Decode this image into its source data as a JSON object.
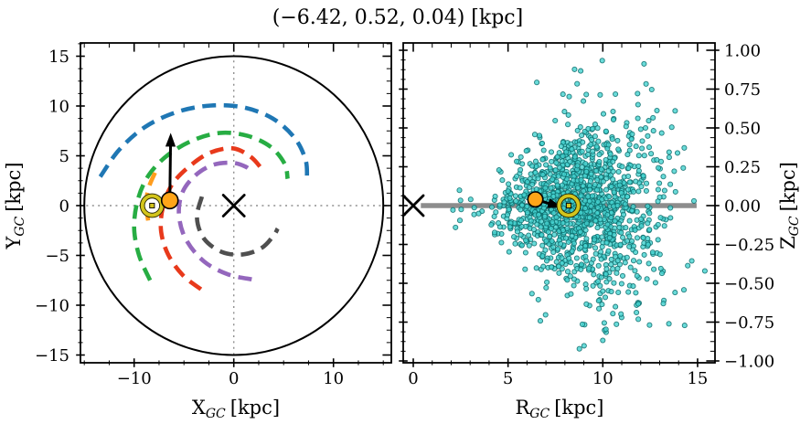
{
  "figure": {
    "title": "(−6.42, 0.52, 0.04) [kpc]",
    "background": "#ffffff"
  },
  "style": {
    "axis_color": "#000000",
    "crosshair_gray": "#8f8f8f",
    "boundary_circle": "#000000",
    "star_orange": "#ffa519",
    "sun_yellow": "#d3c51d",
    "scatter_fill": "#45d2cf",
    "scatter_edge": "#0c6b6b",
    "midplane_bar_gray": "#8d8d8d",
    "arrow_black": "#000000"
  },
  "chart_data": [
    {
      "type": "scatter",
      "id": "xy_plane",
      "xlabel": {
        "prefix": "X",
        "sub": "GC",
        "suffix": "[kpc]"
      },
      "ylabel": {
        "prefix": "Y",
        "sub": "GC",
        "suffix": "[kpc]"
      },
      "xlim": [
        -15.4,
        15.8
      ],
      "ylim": [
        -15.8,
        16.3
      ],
      "xticks": {
        "values": [
          -10,
          0,
          10
        ],
        "labels": [
          "−10",
          "0",
          "10"
        ]
      },
      "yticks": {
        "values": [
          -15,
          -10,
          -5,
          0,
          5,
          10,
          15
        ],
        "labels": [
          "−15",
          "−10",
          "−5",
          "0",
          "5",
          "10",
          "15"
        ]
      },
      "minor_step_x": 2.5,
      "minor_step_y": 1.25,
      "crosshair_dotted": true,
      "boundary_circle_radius": 15,
      "galactic_center": {
        "x": 0,
        "y": 0,
        "marker": "x"
      },
      "sun": {
        "x": -8.2,
        "y": 0
      },
      "object": {
        "x": -6.42,
        "y": 0.52
      },
      "arrow": {
        "from": [
          -6.42,
          0.52
        ],
        "to": [
          -6.33,
          7.3
        ]
      },
      "spiral_arms": [
        {
          "name": "arm-blue",
          "color": "#1f77b4",
          "points": [
            [
              -13.4,
              2.9
            ],
            [
              -11.5,
              5.6
            ],
            [
              -8.9,
              7.9
            ],
            [
              -5.7,
              9.4
            ],
            [
              -2.3,
              10.05
            ],
            [
              1.0,
              9.85
            ],
            [
              3.9,
              8.75
            ],
            [
              6.1,
              6.8
            ],
            [
              7.2,
              4.6
            ],
            [
              7.35,
              2.8
            ]
          ]
        },
        {
          "name": "arm-green",
          "color": "#27ad43",
          "points": [
            [
              -8.4,
              -7.5
            ],
            [
              -9.5,
              -5.0
            ],
            [
              -10.0,
              -2.2
            ],
            [
              -9.6,
              0.7
            ],
            [
              -8.5,
              3.1
            ],
            [
              -6.6,
              5.1
            ],
            [
              -4.0,
              6.6
            ],
            [
              -1.3,
              7.3
            ],
            [
              1.4,
              7.0
            ],
            [
              3.7,
              5.9
            ],
            [
              5.1,
              4.2
            ],
            [
              5.4,
              2.7
            ]
          ]
        },
        {
          "name": "arm-orange-local",
          "color": "#ff9d1e",
          "points": [
            [
              -7.9,
              3.3
            ],
            [
              -8.5,
              1.9
            ],
            [
              -8.8,
              0.3
            ],
            [
              -8.6,
              -1.5
            ]
          ]
        },
        {
          "name": "arm-red",
          "color": "#e8391b",
          "points": [
            [
              -3.3,
              -8.4
            ],
            [
              -5.1,
              -7.0
            ],
            [
              -6.6,
              -4.9
            ],
            [
              -7.3,
              -2.5
            ],
            [
              -7.1,
              -0.1
            ],
            [
              -6.2,
              2.1
            ],
            [
              -4.5,
              3.9
            ],
            [
              -2.4,
              5.3
            ],
            [
              -0.1,
              5.75
            ],
            [
              1.7,
              4.9
            ],
            [
              2.8,
              3.7
            ]
          ]
        },
        {
          "name": "arm-purple",
          "color": "#9467bd",
          "points": [
            [
              1.8,
              -7.4
            ],
            [
              -0.6,
              -6.9
            ],
            [
              -3.0,
              -5.6
            ],
            [
              -4.8,
              -3.4
            ],
            [
              -5.5,
              -1.0
            ],
            [
              -5.2,
              1.2
            ],
            [
              -4.0,
              2.9
            ],
            [
              -2.2,
              4.05
            ],
            [
              -0.2,
              4.3
            ],
            [
              1.2,
              3.9
            ],
            [
              1.9,
              3.3
            ]
          ]
        },
        {
          "name": "arm-gray-inner",
          "color": "#4f4f4f",
          "points": [
            [
              -3.2,
              0.9
            ],
            [
              -3.7,
              -1.2
            ],
            [
              -3.0,
              -3.3
            ],
            [
              -1.2,
              -4.65
            ],
            [
              0.9,
              -4.9
            ],
            [
              2.8,
              -4.25
            ],
            [
              4.0,
              -3.0
            ],
            [
              4.4,
              -2.3
            ]
          ]
        }
      ]
    },
    {
      "type": "scatter",
      "id": "rz_plane",
      "xlabel": {
        "prefix": "R",
        "sub": "GC",
        "suffix": "[kpc]"
      },
      "ylabel": {
        "prefix": "Z",
        "sub": "GC",
        "suffix": "[kpc]"
      },
      "xlim": [
        -0.53,
        15.92
      ],
      "ylim": [
        -1.01,
        1.05
      ],
      "ylabel_side": "right",
      "xticks": {
        "values": [
          0,
          5,
          10,
          15
        ],
        "labels": [
          "0",
          "5",
          "10",
          "15"
        ]
      },
      "yticks": {
        "values": [
          1.0,
          0.75,
          0.5,
          0.25,
          0.0,
          -0.25,
          -0.5,
          -0.75,
          -1.0
        ],
        "labels": [
          "1.00",
          "0.75",
          "0.50",
          "0.25",
          "0.00",
          "−0.25",
          "−0.50",
          "−0.75",
          "−1.00"
        ]
      },
      "minor_step_x": 1.0,
      "minor_step_y": 0.0625,
      "midplane_bar": {
        "z": 0,
        "r_from": 0.4,
        "r_to": 14.95
      },
      "galactic_center": {
        "x": 0,
        "y": 0,
        "marker": "x"
      },
      "sun": {
        "x": 8.2,
        "y": 0
      },
      "object": {
        "x": 6.44,
        "y": 0.04
      },
      "arrow": {
        "from": [
          6.44,
          0.04
        ],
        "to": [
          7.82,
          -0.01
        ]
      },
      "scatter_cloud": {
        "n": 1400,
        "seed": 7,
        "r_mean": 8.9,
        "r_sigma": 2.1,
        "r_min": 1.2,
        "r_max": 15.7,
        "z_sigma_base": 0.05,
        "z_sigma_slope": 0.032,
        "z_sigma_r0": 3.0,
        "outlier_fraction": 0.1,
        "outlier_scale": 2.2,
        "z_max": 1.0
      }
    }
  ]
}
